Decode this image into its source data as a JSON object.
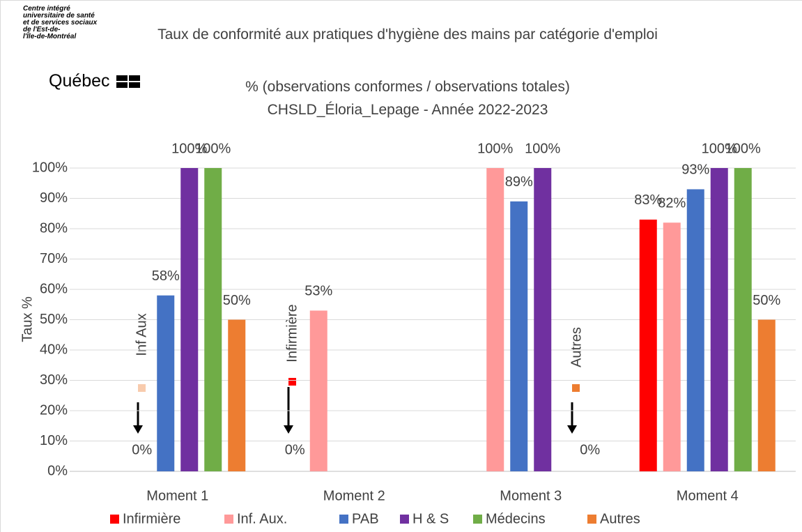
{
  "chart_data": {
    "type": "bar",
    "title": "Taux de conformité aux pratiques d'hygiène des mains par catégorie d'emploi",
    "subtitle": [
      "% (observations conformes / observations totales)",
      "CHSLD_Éloria_Lepage - Année 2022-2023"
    ],
    "logo": [
      "Centre intégré",
      "universitaire de santé",
      "et de services sociaux",
      "de l'Est-de-",
      "l'Île-de-Montréal",
      "Québec"
    ],
    "y_label": "Taux %",
    "categories": [
      "Moment 1",
      "Moment 2",
      "Moment 3",
      "Moment 4"
    ],
    "series": [
      {
        "name": "Infirmière",
        "color": "#ff0000",
        "values": [
          null,
          0,
          null,
          83
        ],
        "value_labels": [
          null,
          "0%",
          null,
          "83%"
        ]
      },
      {
        "name": "Inf. Aux.",
        "color": "#ff9999",
        "values": [
          0,
          53,
          100,
          82
        ],
        "value_labels": [
          "0%",
          "53%",
          "100%",
          "82%"
        ]
      },
      {
        "name": "PAB",
        "color": "#4472c4",
        "values": [
          58,
          null,
          89,
          93
        ],
        "value_labels": [
          "58%",
          null,
          "89%",
          "93%"
        ]
      },
      {
        "name": "H & S",
        "color": "#7030a0",
        "values": [
          100,
          null,
          100,
          100
        ],
        "value_labels": [
          "100%",
          null,
          "100%",
          "100%"
        ]
      },
      {
        "name": "Médecins",
        "color": "#70ad47",
        "values": [
          100,
          null,
          null,
          100
        ],
        "value_labels": [
          "100%",
          null,
          null,
          "100%"
        ]
      },
      {
        "name": "Autres",
        "color": "#ed7d31",
        "values": [
          50,
          null,
          0,
          50
        ],
        "value_labels": [
          "50%",
          null,
          "0%",
          "50%"
        ]
      }
    ],
    "annotations": [
      "Inf Aux",
      "Infirmière",
      "Autres"
    ],
    "ylim": [
      0,
      100
    ],
    "yticks": [
      {
        "value": 0,
        "label": "0%"
      },
      {
        "value": 10,
        "label": "10%"
      },
      {
        "value": 20,
        "label": "20%"
      },
      {
        "value": 30,
        "label": "30%"
      },
      {
        "value": 40,
        "label": "40%"
      },
      {
        "value": 50,
        "label": "50%"
      },
      {
        "value": 60,
        "label": "60%"
      },
      {
        "value": 70,
        "label": "70%"
      },
      {
        "value": 80,
        "label": "80%"
      },
      {
        "value": 90,
        "label": "90%"
      },
      {
        "value": 100,
        "label": "100%"
      }
    ],
    "grid": true,
    "legend": "bottom"
  }
}
